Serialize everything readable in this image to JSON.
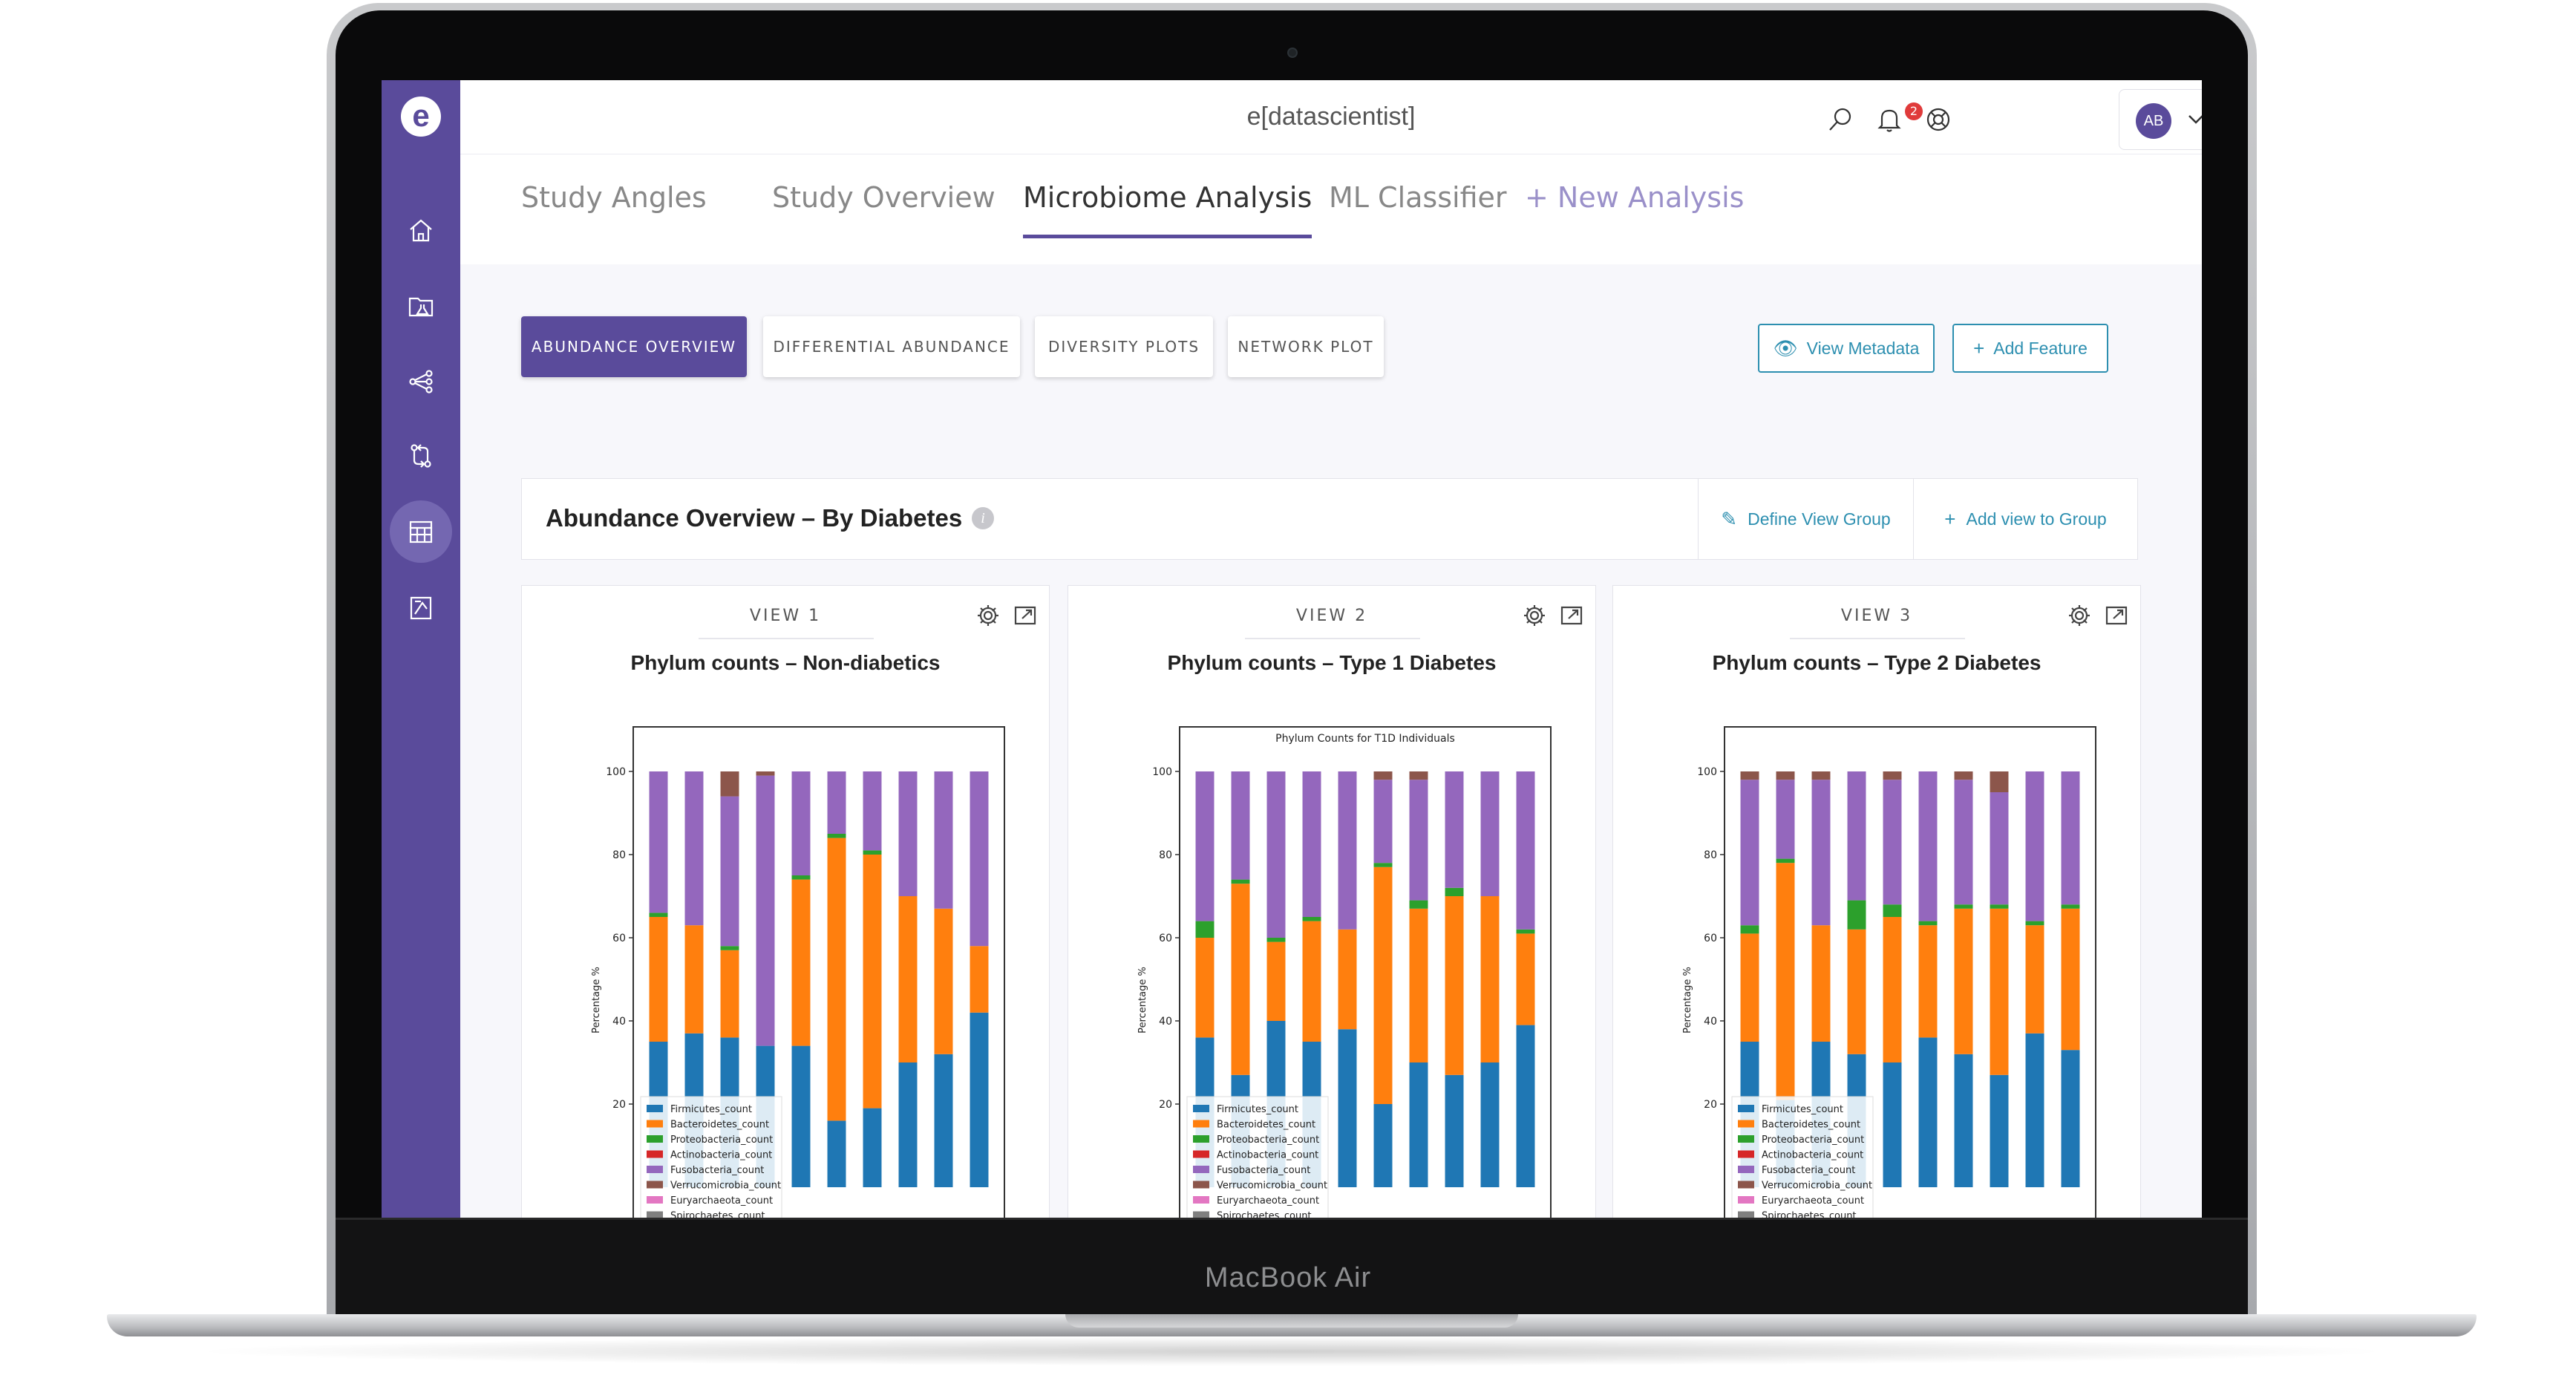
{
  "device": {
    "brand_label": "MacBook Air"
  },
  "app": {
    "title": "e[datascientist]",
    "logo_letter": "e",
    "notification_count": "2",
    "user_initials": "AB"
  },
  "sidebar": {
    "items": [
      {
        "icon": "home-icon"
      },
      {
        "icon": "folder-lab-icon"
      },
      {
        "icon": "share-nodes-icon"
      },
      {
        "icon": "git-compare-icon"
      },
      {
        "icon": "table-icon",
        "active": true
      },
      {
        "icon": "report-icon"
      }
    ]
  },
  "tabs": {
    "study_angles": "Study Angles",
    "study_overview": "Study Overview",
    "microbiome_analysis": "Microbiome Analysis",
    "ml_classifier": "ML Classifier",
    "new_analysis": "+ New Analysis"
  },
  "subnav": {
    "abundance_overview": "ABUNDANCE OVERVIEW",
    "differential_abundance": "DIFFERENTIAL ABUNDANCE",
    "diversity_plots": "DIVERSITY PLOTS",
    "network_plot": "NETWORK PLOT"
  },
  "actions": {
    "view_metadata": "View Metadata",
    "add_feature": "Add Feature",
    "define_view_group": "Define View Group",
    "add_view_to_group": "Add view to Group"
  },
  "overview": {
    "title": "Abundance Overview – By Diabetes"
  },
  "colors": {
    "accent": "#5a4b9b",
    "link": "#2d8fb0",
    "Firmicutes_count": "#1f77b4",
    "Bacteroidetes_count": "#ff7f0e",
    "Proteobacteria_count": "#2ca02c",
    "Actinobacteria_count": "#d62728",
    "Fusobacteria_count": "#9467bd",
    "Verrucomicrobia_count": "#8c564b",
    "Euryarchaeota_count": "#e377c2",
    "Spirochaetes_count": "#7f7f7f"
  },
  "views": [
    {
      "label": "VIEW 1",
      "title": "Phylum counts – Non-diabetics"
    },
    {
      "label": "VIEW 2",
      "title": "Phylum counts – Type 1 Diabetes"
    },
    {
      "label": "VIEW 3",
      "title": "Phylum counts – Type 2 Diabetes"
    }
  ],
  "chart_data": [
    {
      "type": "bar",
      "stacked": true,
      "title": "",
      "ylabel": "Percentage %",
      "ylim": [
        0,
        100
      ],
      "yticks": [
        20,
        40,
        60,
        80,
        100
      ],
      "legend": [
        "Firmicutes_count",
        "Bacteroidetes_count",
        "Proteobacteria_count",
        "Actinobacteria_count",
        "Fusobacteria_count",
        "Verrucomicrobia_count",
        "Euryarchaeota_count",
        "Spirochaetes_count"
      ],
      "series": [
        {
          "name": "Firmicutes_count",
          "values": [
            35,
            37,
            36,
            34,
            34,
            16,
            19,
            30,
            32,
            42
          ]
        },
        {
          "name": "Bacteroidetes_count",
          "values": [
            30,
            26,
            21,
            0,
            40,
            68,
            61,
            40,
            35,
            16
          ]
        },
        {
          "name": "Proteobacteria_count",
          "values": [
            1,
            0,
            1,
            0,
            1,
            1,
            1,
            0,
            0,
            0
          ]
        },
        {
          "name": "Actinobacteria_count",
          "values": [
            0,
            0,
            0,
            0,
            0,
            0,
            0,
            0,
            0,
            0
          ]
        },
        {
          "name": "Fusobacteria_count",
          "values": [
            34,
            37,
            36,
            65,
            25,
            15,
            19,
            30,
            33,
            42
          ]
        },
        {
          "name": "Verrucomicrobia_count",
          "values": [
            0,
            0,
            6,
            1,
            0,
            0,
            0,
            0,
            0,
            0
          ]
        }
      ]
    },
    {
      "type": "bar",
      "stacked": true,
      "title": "Phylum Counts for T1D Individuals",
      "ylabel": "Percentage %",
      "ylim": [
        0,
        100
      ],
      "yticks": [
        20,
        40,
        60,
        80,
        100
      ],
      "legend": [
        "Firmicutes_count",
        "Bacteroidetes_count",
        "Proteobacteria_count",
        "Actinobacteria_count",
        "Fusobacteria_count",
        "Verrucomicrobia_count",
        "Euryarchaeota_count",
        "Spirochaetes_count"
      ],
      "series": [
        {
          "name": "Firmicutes_count",
          "values": [
            36,
            27,
            40,
            35,
            38,
            20,
            30,
            27,
            30,
            39
          ]
        },
        {
          "name": "Bacteroidetes_count",
          "values": [
            24,
            46,
            19,
            29,
            24,
            57,
            37,
            43,
            40,
            22
          ]
        },
        {
          "name": "Proteobacteria_count",
          "values": [
            4,
            1,
            1,
            1,
            0,
            1,
            2,
            2,
            0,
            1
          ]
        },
        {
          "name": "Actinobacteria_count",
          "values": [
            0,
            0,
            0,
            0,
            0,
            0,
            0,
            0,
            0,
            0
          ]
        },
        {
          "name": "Fusobacteria_count",
          "values": [
            36,
            26,
            40,
            35,
            38,
            20,
            29,
            28,
            30,
            38
          ]
        },
        {
          "name": "Verrucomicrobia_count",
          "values": [
            0,
            0,
            0,
            0,
            0,
            2,
            2,
            0,
            0,
            0
          ]
        }
      ]
    },
    {
      "type": "bar",
      "stacked": true,
      "title": "",
      "ylabel": "Percentage %",
      "ylim": [
        0,
        100
      ],
      "yticks": [
        20,
        40,
        60,
        80,
        100
      ],
      "legend": [
        "Firmicutes_count",
        "Bacteroidetes_count",
        "Proteobacteria_count",
        "Actinobacteria_count",
        "Fusobacteria_count",
        "Verrucomicrobia_count",
        "Euryarchaeota_count",
        "Spirochaetes_count"
      ],
      "series": [
        {
          "name": "Firmicutes_count",
          "values": [
            35,
            21,
            35,
            32,
            30,
            36,
            32,
            27,
            37,
            33
          ]
        },
        {
          "name": "Bacteroidetes_count",
          "values": [
            26,
            57,
            28,
            30,
            35,
            27,
            35,
            40,
            26,
            34
          ]
        },
        {
          "name": "Proteobacteria_count",
          "values": [
            2,
            1,
            0,
            7,
            3,
            1,
            1,
            1,
            1,
            1
          ]
        },
        {
          "name": "Actinobacteria_count",
          "values": [
            0,
            0,
            0,
            0,
            0,
            0,
            0,
            0,
            0,
            0
          ]
        },
        {
          "name": "Fusobacteria_count",
          "values": [
            35,
            19,
            35,
            31,
            30,
            36,
            30,
            27,
            36,
            32
          ]
        },
        {
          "name": "Verrucomicrobia_count",
          "values": [
            2,
            2,
            2,
            0,
            2,
            0,
            2,
            5,
            0,
            0
          ]
        }
      ]
    }
  ]
}
